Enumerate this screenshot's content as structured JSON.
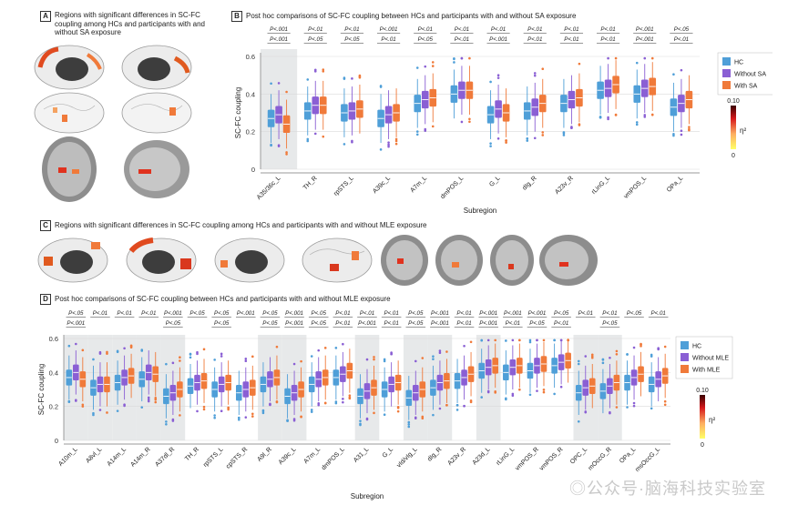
{
  "panels": {
    "A": {
      "label": "A",
      "title": "Regions with significant differences in SC-FC coupling among HCs and participants with and without SA exposure"
    },
    "B": {
      "label": "B",
      "title": "Post hoc comparisons of SC-FC coupling between HCs and participants with and without SA exposure"
    },
    "C": {
      "label": "C",
      "title": "Regions with significant differences in SC-FC coupling among HCs and participants with and without MLE exposure"
    },
    "D": {
      "label": "D",
      "title": "Post hoc comparisons of SC-FC coupling between HCs and participants with and without MLE exposure"
    }
  },
  "watermark": "◎公众号·脑海科技实验室",
  "chart_data": [
    {
      "type": "box",
      "panel": "B",
      "ylabel": "SC-FC coupling",
      "xlabel": "Subregion",
      "ylim": [
        0,
        0.6
      ],
      "yticks": [
        "0",
        "0.2",
        "0.4",
        "0.6"
      ],
      "categories": [
        "A35/36c_L",
        "TH_R",
        "rpSTS_L",
        "A39c_L",
        "A7m_L",
        "dmPOS_L",
        "G_L",
        "dIg_R",
        "A23v_R",
        "rLinG_L",
        "vmPOS_L",
        "OPa_L"
      ],
      "shaded": [
        0
      ],
      "medians": {
        "HC": [
          0.27,
          0.31,
          0.3,
          0.27,
          0.35,
          0.4,
          0.29,
          0.31,
          0.35,
          0.42,
          0.4,
          0.33
        ],
        "Without SA": [
          0.29,
          0.34,
          0.31,
          0.29,
          0.37,
          0.42,
          0.32,
          0.33,
          0.37,
          0.43,
          0.43,
          0.35
        ],
        "With SA": [
          0.24,
          0.34,
          0.32,
          0.3,
          0.38,
          0.42,
          0.3,
          0.35,
          0.38,
          0.45,
          0.44,
          0.37
        ]
      },
      "annotations": [
        [
          "P<.001",
          "P<.001"
        ],
        [
          "P<.01",
          "P<.05"
        ],
        [
          "P<.01",
          "P<.05"
        ],
        [
          "P<.001",
          "P<.01"
        ],
        [
          "P<.01",
          "P<.05"
        ],
        [
          "P<.01",
          "P<.01"
        ],
        [
          "P<.01",
          "P<.001"
        ],
        [
          "P<.01",
          "P<.01"
        ],
        [
          "P<.01",
          "P<.01"
        ],
        [
          "P<.01",
          "P<.01"
        ],
        [
          "P<.001",
          "P<.001"
        ],
        [
          "P<.05",
          "P<.01"
        ]
      ],
      "legend": [
        "HC",
        "Without SA",
        "With SA"
      ],
      "colorbar": {
        "max": "0.10",
        "min": "0",
        "label": "η²"
      }
    },
    {
      "type": "box",
      "panel": "D",
      "ylabel": "SC-FC coupling",
      "xlabel": "Subregion",
      "ylim": [
        0,
        0.6
      ],
      "yticks": [
        "0",
        "0.2",
        "0.4",
        "0.6"
      ],
      "categories": [
        "A10m_L",
        "A8vl_L",
        "A14m_L",
        "A14m_R",
        "A37dl_R",
        "TH_R",
        "rpSTS_L",
        "cpSTS_R",
        "A9l_R",
        "A39c_L",
        "A7m_L",
        "dmPOS_L",
        "A31_L",
        "G_L",
        "vId/vIg_L",
        "dIg_R",
        "A23v_R",
        "A23d_L",
        "rLinG_L",
        "vmPOS_R",
        "vmPOS_R",
        "OPC_L",
        "mOccG_R",
        "OPa_L",
        "msOccG_L"
      ],
      "shaded": [
        0,
        1,
        2,
        3,
        4,
        8,
        9,
        12,
        14,
        15,
        17,
        21,
        22
      ],
      "medians": {
        "HC": [
          0.37,
          0.31,
          0.34,
          0.36,
          0.26,
          0.32,
          0.3,
          0.28,
          0.33,
          0.26,
          0.33,
          0.37,
          0.26,
          0.3,
          0.25,
          0.31,
          0.35,
          0.41,
          0.4,
          0.41,
          0.44,
          0.28,
          0.29,
          0.34,
          0.33
        ],
        "Without MLE": [
          0.4,
          0.33,
          0.37,
          0.4,
          0.28,
          0.34,
          0.33,
          0.3,
          0.36,
          0.28,
          0.36,
          0.39,
          0.29,
          0.33,
          0.28,
          0.34,
          0.37,
          0.43,
          0.43,
          0.44,
          0.46,
          0.31,
          0.32,
          0.37,
          0.36
        ],
        "With MLE": [
          0.36,
          0.33,
          0.38,
          0.39,
          0.3,
          0.35,
          0.34,
          0.31,
          0.37,
          0.3,
          0.37,
          0.41,
          0.31,
          0.34,
          0.3,
          0.35,
          0.39,
          0.44,
          0.44,
          0.45,
          0.47,
          0.32,
          0.34,
          0.39,
          0.38
        ]
      },
      "annotations": [
        [
          "P<.05",
          "P<.001"
        ],
        [
          "P<.01",
          ""
        ],
        [
          "P<.01",
          ""
        ],
        [
          "P<.01",
          ""
        ],
        [
          "P<.001",
          "P<.05"
        ],
        [
          "P<.05",
          ""
        ],
        [
          "P<.05",
          "P<.05"
        ],
        [
          "P<.001",
          ""
        ],
        [
          "P<.05",
          "P<.05"
        ],
        [
          "P<.001",
          "P<.001"
        ],
        [
          "P<.05",
          "P<.05"
        ],
        [
          "P<.01",
          "P<.01"
        ],
        [
          "P<.01",
          "P<.001"
        ],
        [
          "P<.01",
          "P<.01"
        ],
        [
          "P<.05",
          "P<.05"
        ],
        [
          "P<.001",
          "P<.001"
        ],
        [
          "P<.01",
          "P<.01"
        ],
        [
          "P<.001",
          "P<.001"
        ],
        [
          "P<.001",
          "P<.01"
        ],
        [
          "P<.001",
          "P<.05"
        ],
        [
          "P<.05",
          "P<.01"
        ],
        [
          "P<.01",
          ""
        ],
        [
          "P<.01",
          "P<.05"
        ],
        [
          "P<.05",
          ""
        ],
        [
          "P<.01",
          ""
        ]
      ],
      "legend": [
        "HC",
        "Without MLE",
        "With MLE"
      ],
      "colorbar": {
        "max": "0.10",
        "min": "0",
        "label": "η²"
      }
    }
  ],
  "colors": {
    "hc": "#4f9fd8",
    "without": "#8a5fd4",
    "with": "#f07a3a",
    "shade": "#e7e9ea",
    "brainGray": "#d6d6d6",
    "brainDark": "#3d3d3d"
  }
}
